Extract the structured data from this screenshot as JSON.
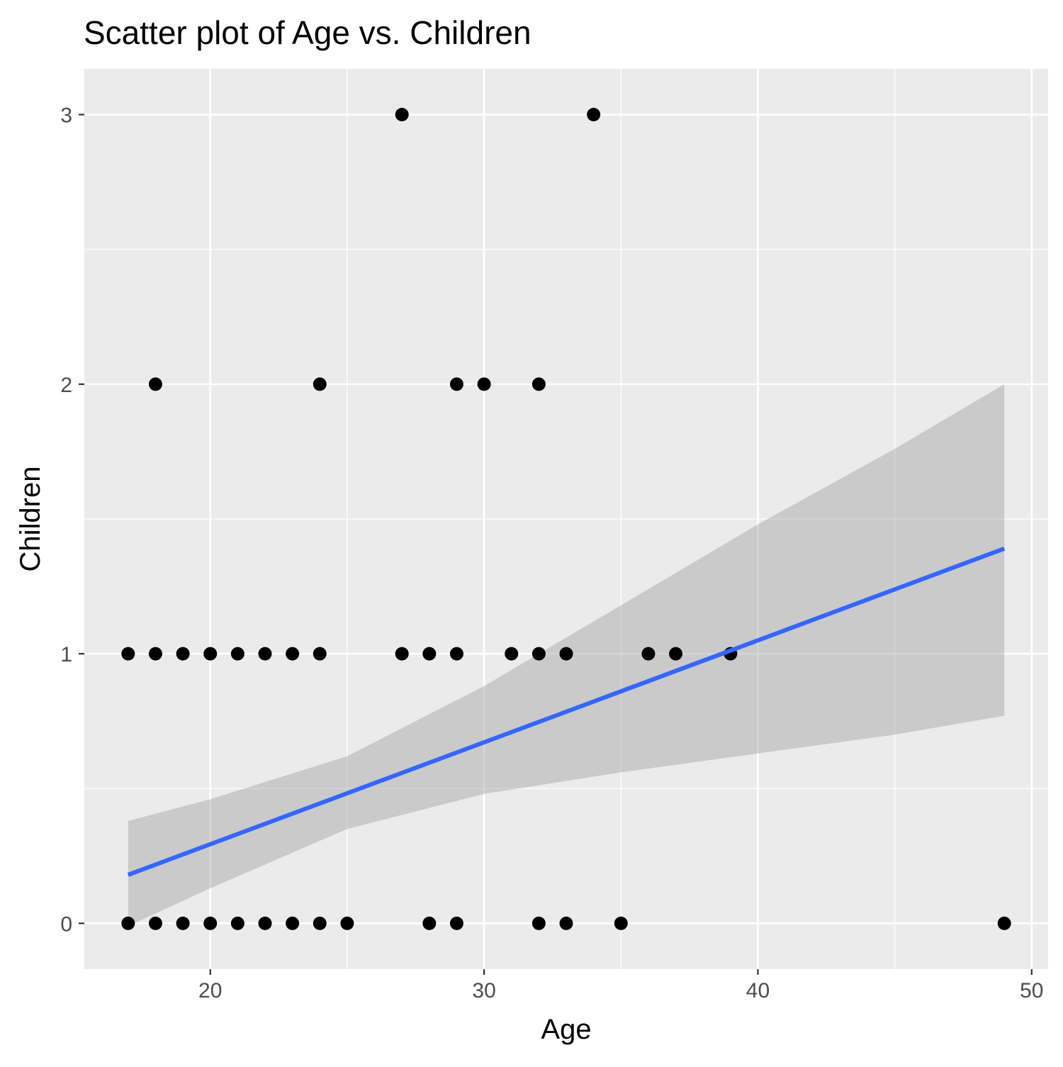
{
  "chart_data": {
    "type": "scatter",
    "title": "Scatter plot of Age vs. Children",
    "xlabel": "Age",
    "ylabel": "Children",
    "xlim": [
      15.4,
      50.6
    ],
    "ylim": [
      -0.17,
      3.17
    ],
    "x_ticks": [
      20,
      30,
      40,
      50
    ],
    "x_tick_labels": [
      "20",
      "30",
      "40",
      "50"
    ],
    "y_ticks": [
      0,
      1,
      2,
      3
    ],
    "y_tick_labels": [
      "0",
      "1",
      "2",
      "3"
    ],
    "grid": true,
    "legend": "none",
    "colors": {
      "panel_background": "#ebebeb",
      "grid": "#ffffff",
      "points": "#000000",
      "trend_line": "#3366ff",
      "confidence_band": "#999999"
    },
    "points": [
      {
        "x": 27,
        "y": 3
      },
      {
        "x": 34,
        "y": 3
      },
      {
        "x": 18,
        "y": 2
      },
      {
        "x": 24,
        "y": 2
      },
      {
        "x": 29,
        "y": 2
      },
      {
        "x": 30,
        "y": 2
      },
      {
        "x": 32,
        "y": 2
      },
      {
        "x": 17,
        "y": 1
      },
      {
        "x": 18,
        "y": 1
      },
      {
        "x": 19,
        "y": 1
      },
      {
        "x": 20,
        "y": 1
      },
      {
        "x": 21,
        "y": 1
      },
      {
        "x": 22,
        "y": 1
      },
      {
        "x": 23,
        "y": 1
      },
      {
        "x": 24,
        "y": 1
      },
      {
        "x": 27,
        "y": 1
      },
      {
        "x": 28,
        "y": 1
      },
      {
        "x": 29,
        "y": 1
      },
      {
        "x": 31,
        "y": 1
      },
      {
        "x": 32,
        "y": 1
      },
      {
        "x": 33,
        "y": 1
      },
      {
        "x": 36,
        "y": 1
      },
      {
        "x": 37,
        "y": 1
      },
      {
        "x": 39,
        "y": 1
      },
      {
        "x": 17,
        "y": 0
      },
      {
        "x": 18,
        "y": 0
      },
      {
        "x": 19,
        "y": 0
      },
      {
        "x": 20,
        "y": 0
      },
      {
        "x": 21,
        "y": 0
      },
      {
        "x": 22,
        "y": 0
      },
      {
        "x": 23,
        "y": 0
      },
      {
        "x": 24,
        "y": 0
      },
      {
        "x": 25,
        "y": 0
      },
      {
        "x": 28,
        "y": 0
      },
      {
        "x": 29,
        "y": 0
      },
      {
        "x": 32,
        "y": 0
      },
      {
        "x": 33,
        "y": 0
      },
      {
        "x": 35,
        "y": 0
      },
      {
        "x": 49,
        "y": 0
      }
    ],
    "trend_line": {
      "x": [
        17,
        49
      ],
      "y": [
        0.18,
        1.39
      ]
    },
    "confidence_band": {
      "x": [
        17,
        20,
        25,
        30,
        35,
        40,
        45,
        49
      ],
      "upper": [
        0.38,
        0.46,
        0.62,
        0.88,
        1.18,
        1.48,
        1.76,
        2.0
      ],
      "lower": [
        -0.01,
        0.13,
        0.35,
        0.48,
        0.56,
        0.63,
        0.7,
        0.77
      ]
    }
  }
}
